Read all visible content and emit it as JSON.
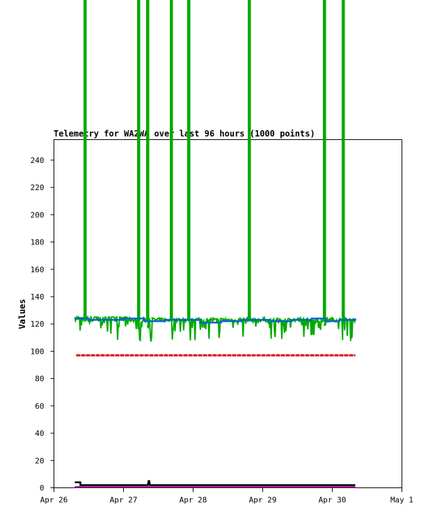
{
  "chart_data": {
    "type": "line",
    "title": "Telemetry for WA2WA over last 96 hours (1000 points)",
    "xlabel": "",
    "ylabel": "Values",
    "x_ticks": [
      "Apr 26",
      "Apr 27",
      "Apr 28",
      "Apr 29",
      "Apr 30",
      "May 1"
    ],
    "y_ticks": [
      0,
      20,
      40,
      60,
      80,
      100,
      120,
      140,
      160,
      180,
      200,
      220,
      240
    ],
    "ylim": [
      0,
      255
    ],
    "xlim": [
      "Apr 26",
      "May 1"
    ],
    "grid": false,
    "series": [
      {
        "color": "#00aa00",
        "base": 123,
        "spikes_at_day": [
          0.44,
          1.21,
          1.34,
          1.68,
          1.93,
          2.8,
          3.88,
          4.15
        ],
        "dips_min": 107
      },
      {
        "color": "#0066cc",
        "x": [
          0.3,
          0.5,
          0.8,
          1.0,
          1.3,
          1.6,
          1.9,
          2.1,
          2.4,
          2.7,
          2.9,
          3.1,
          3.4,
          3.7,
          3.9,
          4.1,
          4.33
        ],
        "values": [
          124,
          123,
          123,
          124,
          122,
          123,
          123,
          121,
          122,
          123,
          123,
          122,
          123,
          124,
          122,
          123,
          124
        ]
      },
      {
        "color": "#dd0000",
        "x": [
          0.32,
          4.33
        ],
        "values": [
          97,
          97
        ]
      },
      {
        "color": "#000000",
        "x": [
          0.3,
          0.38,
          0.38,
          1.35,
          1.36,
          1.37,
          1.38,
          4.33
        ],
        "values": [
          4,
          4,
          2,
          2,
          5,
          5,
          2,
          2
        ]
      },
      {
        "color": "#880088",
        "x": [
          0.3,
          4.33
        ],
        "values": [
          0.5,
          0.5
        ]
      }
    ]
  }
}
